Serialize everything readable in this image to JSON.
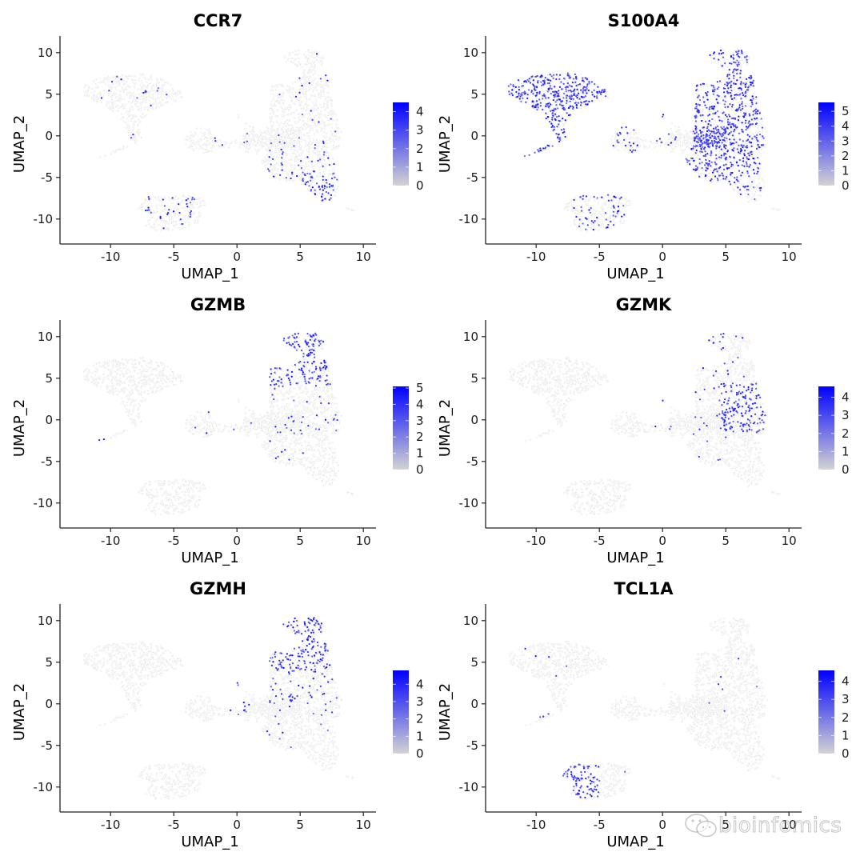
{
  "chart_data": {
    "type": "scatter",
    "subtype": "umap-featureplot-grid",
    "layout": "3 rows x 2 columns",
    "xlabel": "UMAP_1",
    "ylabel": "UMAP_2",
    "xlim": [
      -14,
      11
    ],
    "ylim": [
      -13,
      12
    ],
    "xticks": [
      -10,
      -5,
      0,
      5,
      10
    ],
    "yticks": [
      -10,
      -5,
      0,
      5,
      10
    ],
    "grid": false,
    "color_low": "#d3d3d3",
    "color_high": "#0000ff",
    "clusters": [
      {
        "name": "upper-left",
        "center": [
          -8.5,
          4.5
        ]
      },
      {
        "name": "middle-small",
        "center": [
          -2.5,
          0
        ]
      },
      {
        "name": "right-large",
        "center": [
          5,
          2
        ]
      },
      {
        "name": "bottom",
        "center": [
          -5.5,
          -9.5
        ]
      },
      {
        "name": "lower-right",
        "center": [
          7,
          -6
        ]
      }
    ],
    "panels": [
      {
        "title": "CCR7",
        "legend_ticks": [
          0,
          1,
          2,
          3,
          4
        ],
        "legend_max": 4.5,
        "high_expression": [
          "lower-right",
          "bottom (scattered)",
          "right-large lower part"
        ]
      },
      {
        "title": "S100A4",
        "legend_ticks": [
          0,
          1,
          2,
          3,
          4,
          5
        ],
        "legend_max": 5.6,
        "high_expression": [
          "upper-left",
          "right-large",
          "lower-right (moderate)",
          "bottom (scattered)"
        ]
      },
      {
        "title": "GZMB",
        "legend_ticks": [
          0,
          1,
          2,
          3,
          4,
          5
        ],
        "legend_max": 5.1,
        "high_expression": [
          "right-large top",
          "far-left tail"
        ]
      },
      {
        "title": "GZMK",
        "legend_ticks": [
          0,
          1,
          2,
          3,
          4
        ],
        "legend_max": 4.6,
        "high_expression": [
          "right-large center-right"
        ]
      },
      {
        "title": "GZMH",
        "legend_ticks": [
          0,
          1,
          2,
          3,
          4
        ],
        "legend_max": 4.8,
        "high_expression": [
          "right-large top"
        ]
      },
      {
        "title": "TCL1A",
        "legend_ticks": [
          0,
          1,
          2,
          3,
          4
        ],
        "legend_max": 4.6,
        "high_expression": [
          "bottom left part"
        ]
      }
    ]
  },
  "watermark": "bioinfomics"
}
